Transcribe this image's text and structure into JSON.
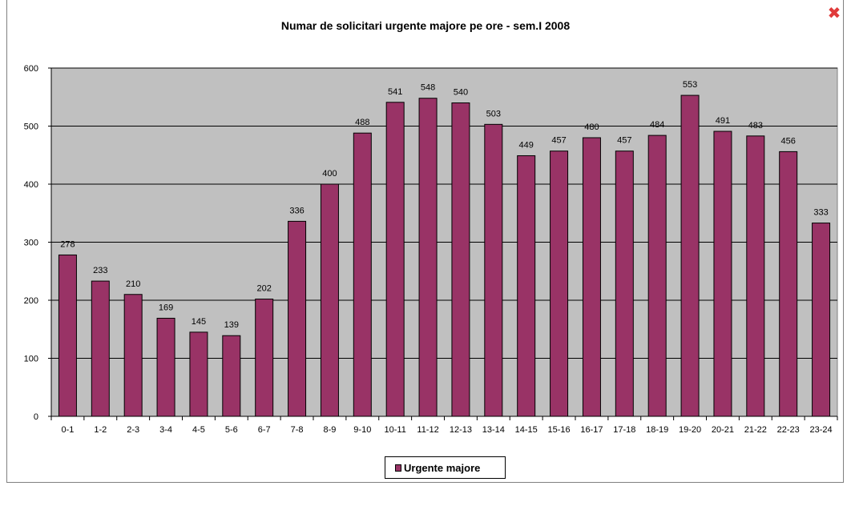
{
  "window": {
    "close_symbol": "✖",
    "close_icon": "close-icon",
    "close_color": "#e03a3a"
  },
  "colors": {
    "bar_fill": "#993366",
    "plot_background": "#c0c0c0",
    "gridline": "#000000"
  },
  "legend": {
    "label": "Urgente majore"
  },
  "chart_data": {
    "type": "bar",
    "title": "Numar de solicitari urgente majore pe ore - sem.I 2008",
    "xlabel": "",
    "ylabel": "",
    "ylim": [
      0,
      600
    ],
    "yticks": [
      0,
      100,
      200,
      300,
      400,
      500,
      600
    ],
    "grid": true,
    "legend_position": "bottom",
    "categories": [
      "0-1",
      "1-2",
      "2-3",
      "3-4",
      "4-5",
      "5-6",
      "6-7",
      "7-8",
      "8-9",
      "9-10",
      "10-11",
      "11-12",
      "12-13",
      "13-14",
      "14-15",
      "15-16",
      "16-17",
      "17-18",
      "18-19",
      "19-20",
      "20-21",
      "21-22",
      "22-23",
      "23-24"
    ],
    "series": [
      {
        "name": "Urgente majore",
        "values": [
          278,
          233,
          210,
          169,
          145,
          139,
          202,
          336,
          400,
          488,
          541,
          548,
          540,
          503,
          449,
          457,
          480,
          457,
          484,
          553,
          491,
          483,
          456,
          333
        ]
      }
    ]
  }
}
